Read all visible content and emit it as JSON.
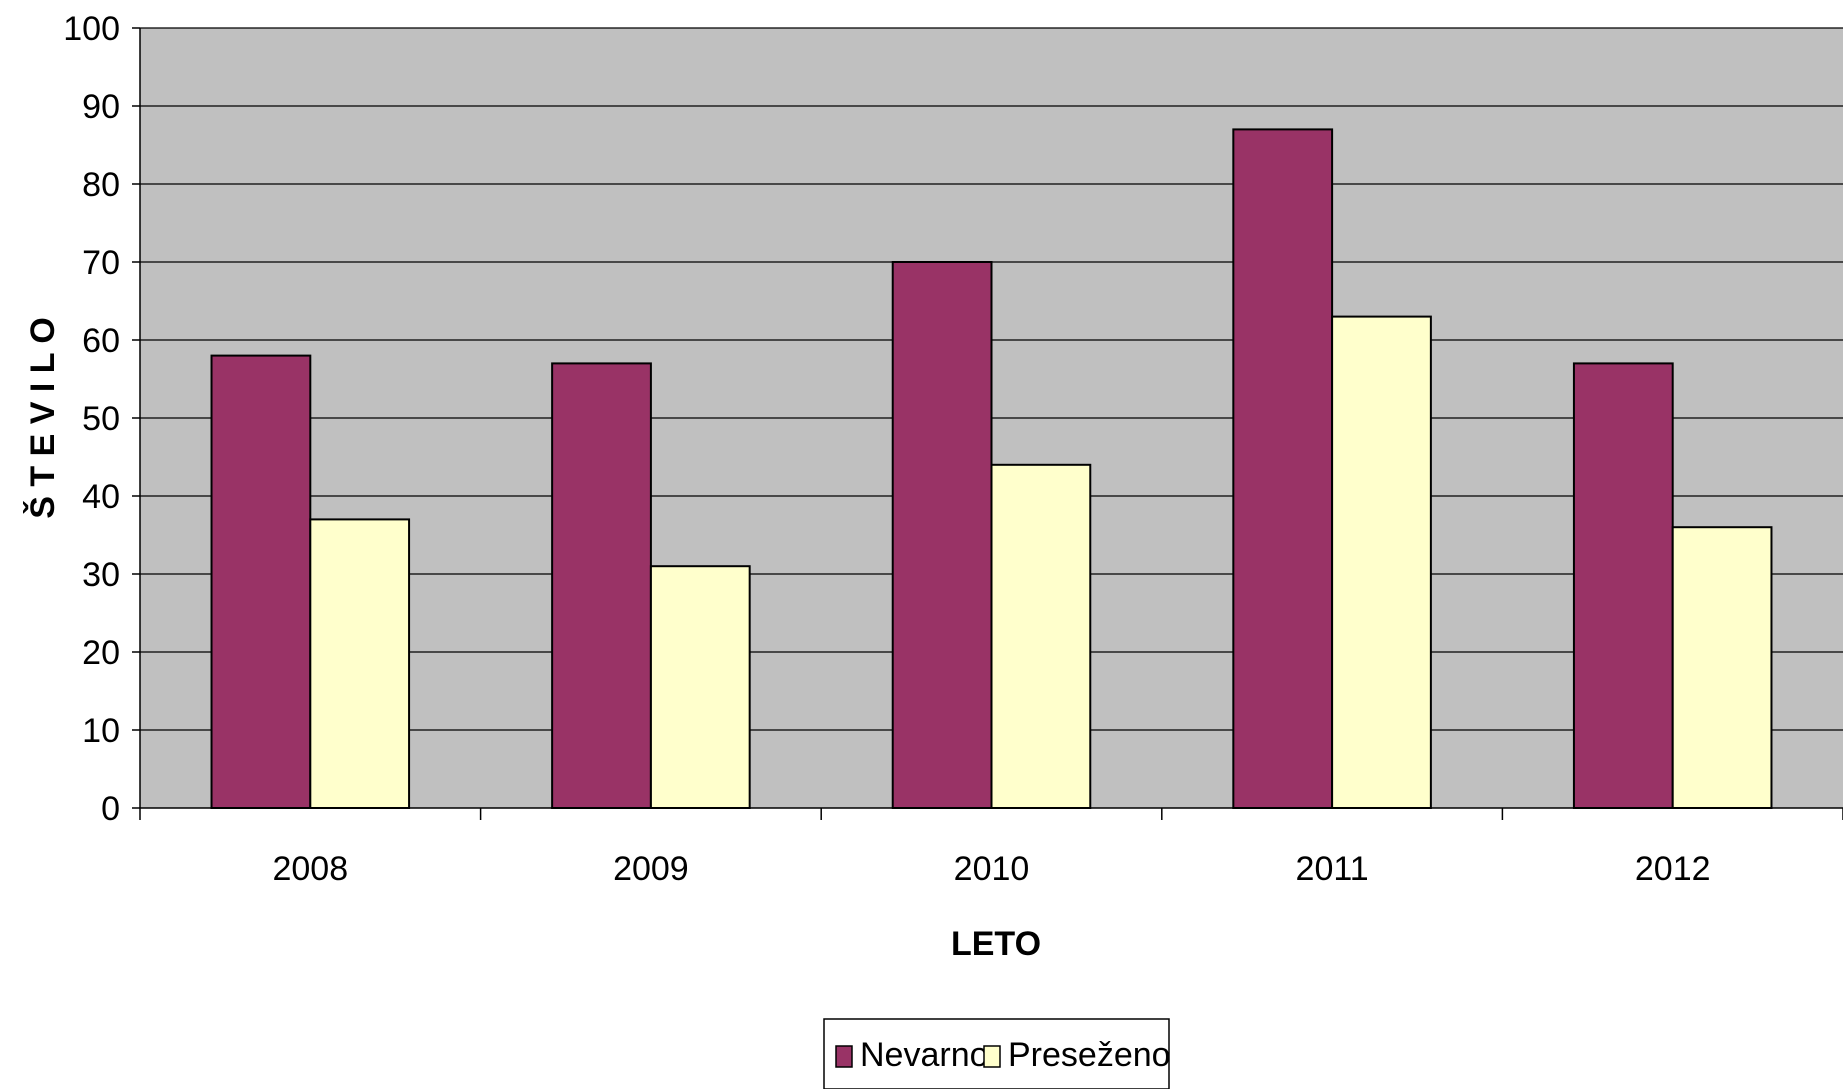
{
  "chart_data": {
    "type": "bar",
    "categories": [
      "2008",
      "2009",
      "2010",
      "2011",
      "2012"
    ],
    "series": [
      {
        "name": "Nevarno",
        "values": [
          58,
          57,
          70,
          87,
          57
        ],
        "color": "#993366"
      },
      {
        "name": "Preseženo",
        "values": [
          37,
          31,
          44,
          63,
          36
        ],
        "color": "#FFFFCC"
      }
    ],
    "xlabel": "LETO",
    "ylabel": "Š T E V I L O",
    "ylim": [
      0,
      100
    ],
    "yticks": [
      0,
      10,
      20,
      30,
      40,
      50,
      60,
      70,
      80,
      90,
      100
    ],
    "grid": true,
    "plot_background": "#C0C0C0",
    "legend_position": "bottom"
  }
}
